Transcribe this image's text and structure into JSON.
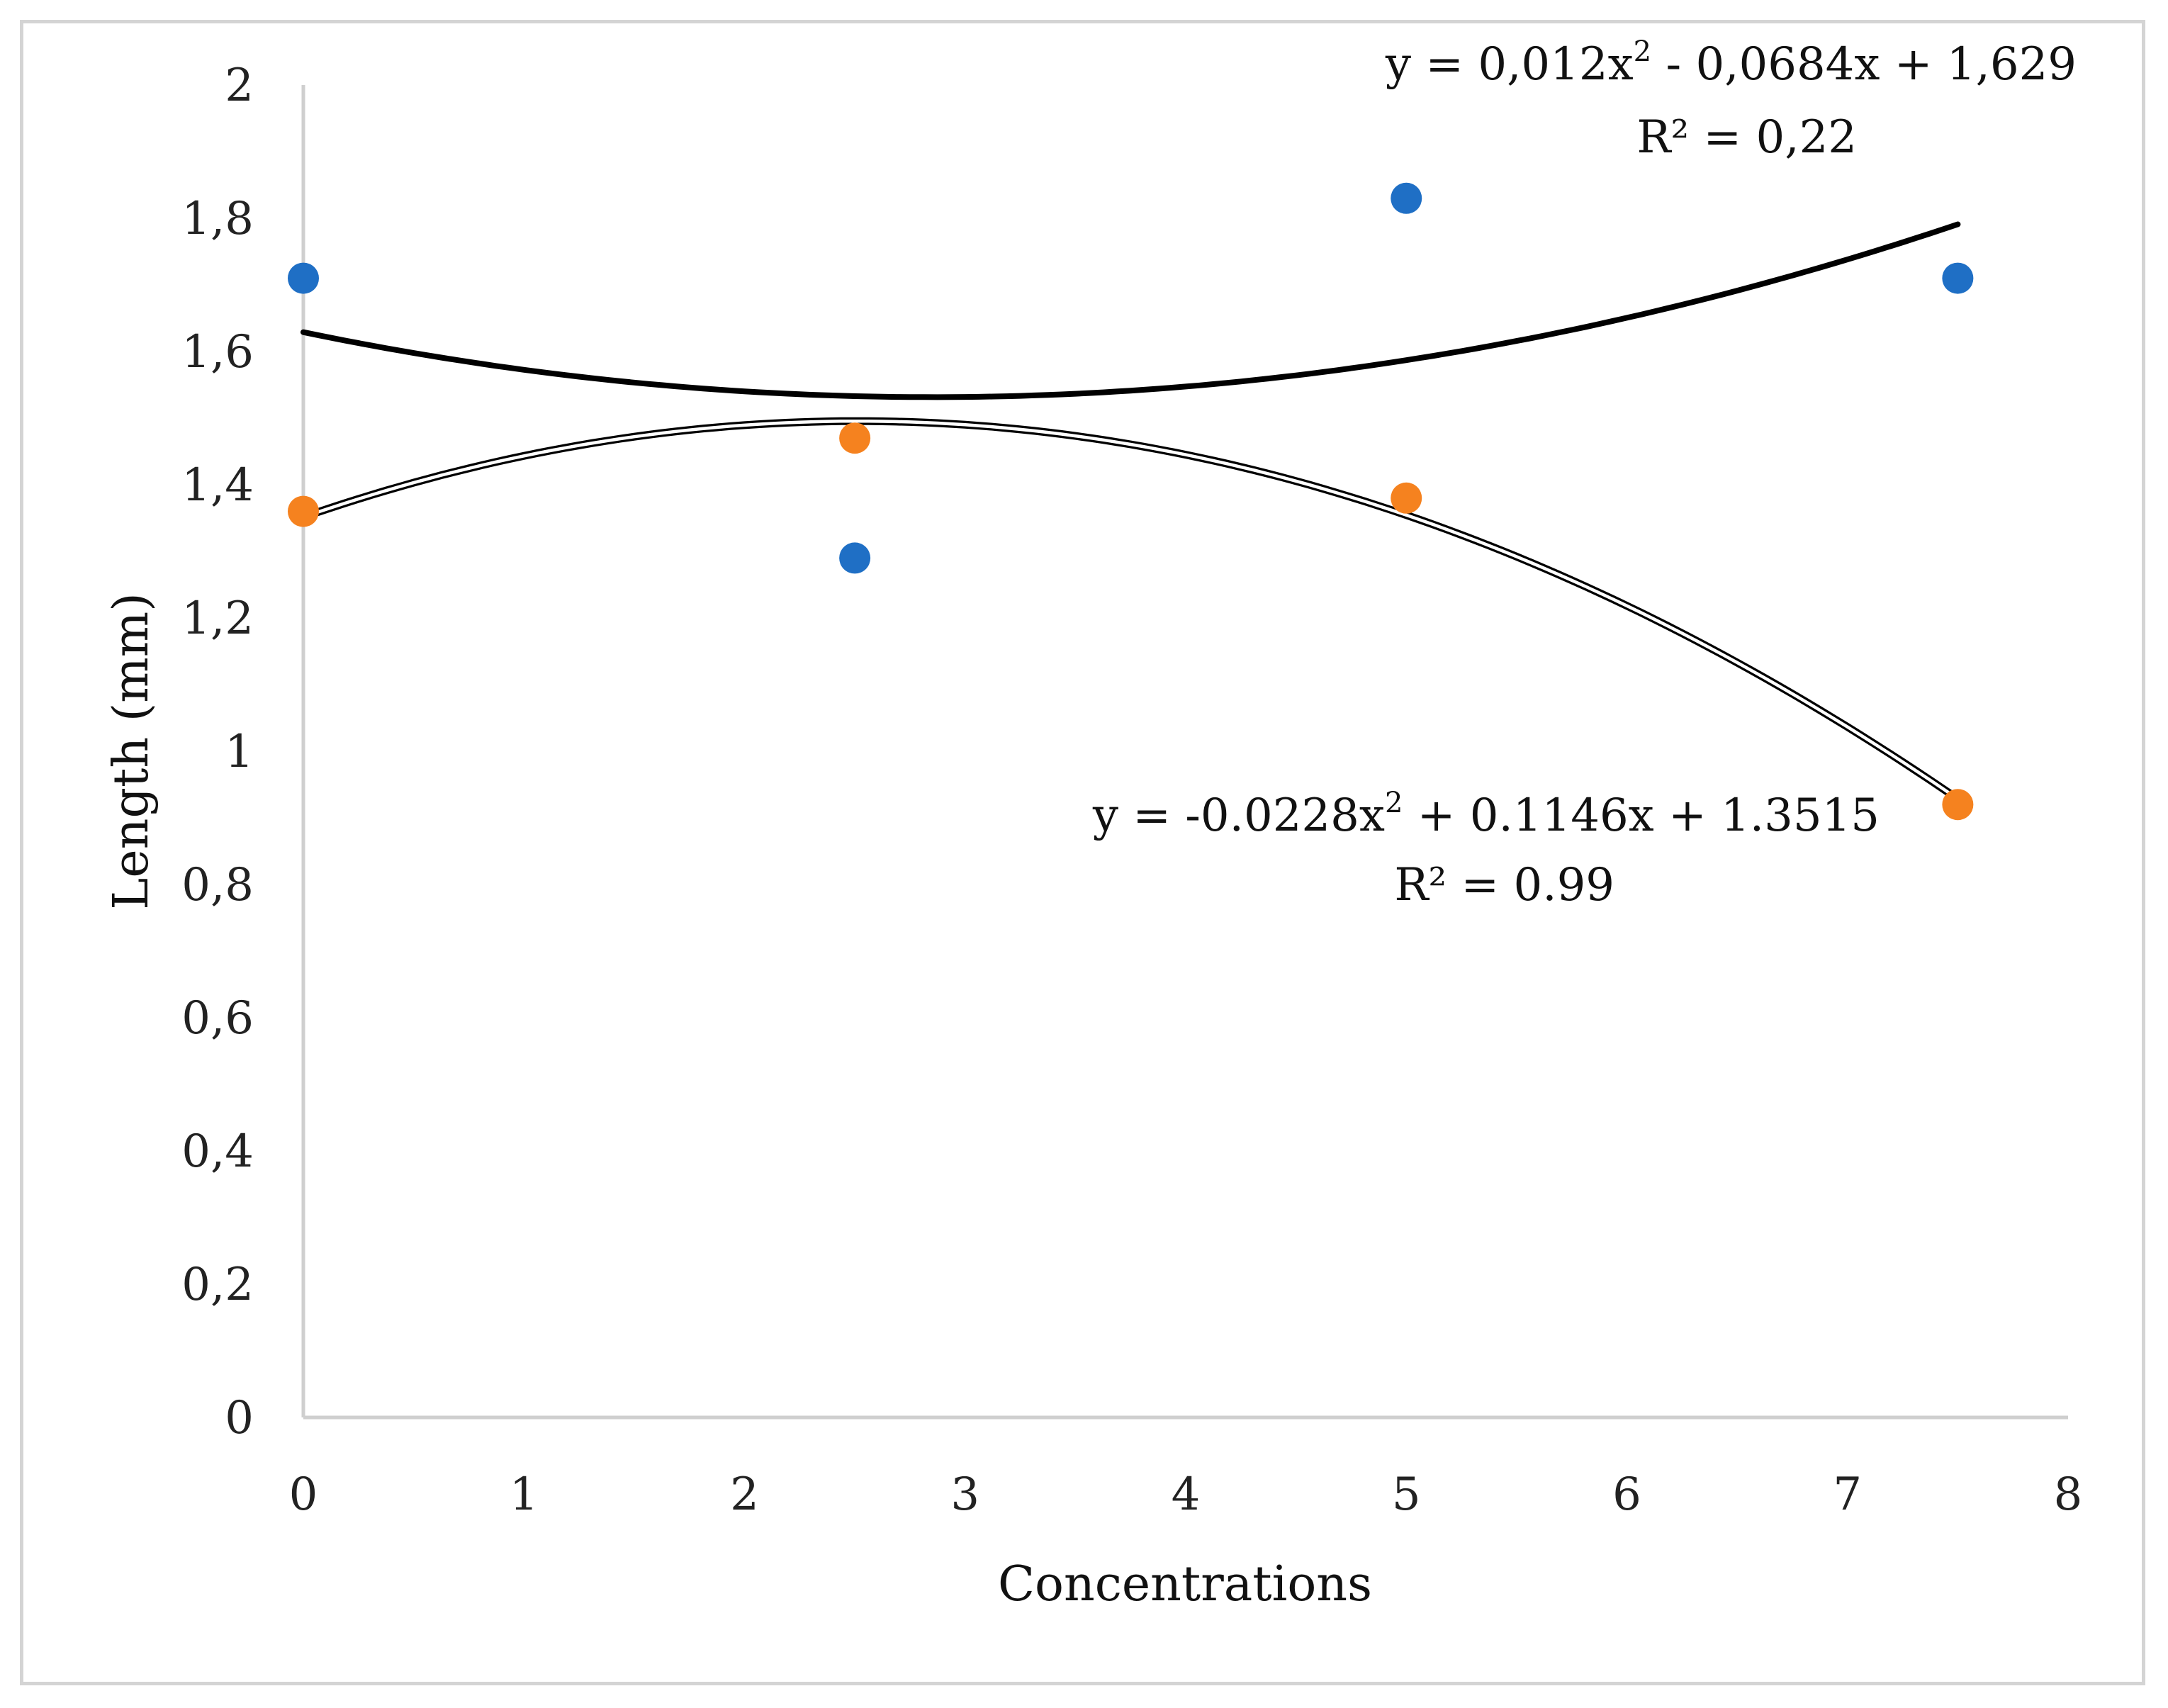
{
  "chart_data": {
    "type": "scatter",
    "title": "",
    "xlabel": "Concentrations",
    "ylabel": "Length (mm)",
    "xlim": [
      0,
      8
    ],
    "ylim": [
      0,
      2
    ],
    "x_ticks": [
      "0",
      "1",
      "2",
      "3",
      "4",
      "5",
      "6",
      "7",
      "8"
    ],
    "y_ticks": [
      "0",
      "0,2",
      "0,4",
      "0,6",
      "0,8",
      "1",
      "1,2",
      "1,4",
      "1,6",
      "1,8",
      "2"
    ],
    "grid": false,
    "legend": "none",
    "series": [
      {
        "name": "series-1",
        "color": "#1f6fc5",
        "x": [
          0,
          2.5,
          5,
          7.5
        ],
        "y": [
          1.71,
          1.29,
          1.83,
          1.71
        ],
        "trendline": {
          "type": "polynomial-2",
          "coefficients": [
            0.012,
            -0.0684,
            1.629
          ],
          "x_range": [
            0,
            7.5
          ],
          "style": "solid-bold",
          "color": "#000000",
          "equation_main": "y = 0,012x",
          "equation_sup": "2",
          "equation_rest": " - 0,0684x + 1,629",
          "r2_label": "R² = 0,22"
        }
      },
      {
        "name": "series-2",
        "color": "#f5821f",
        "x": [
          0,
          2.5,
          5,
          7.5
        ],
        "y": [
          1.36,
          1.47,
          1.38,
          0.92
        ],
        "trendline": {
          "type": "polynomial-2",
          "coefficients": [
            -0.0228,
            0.1146,
            1.3515
          ],
          "x_range": [
            0,
            7.5
          ],
          "style": "double-line",
          "color": "#000000",
          "equation_main": "y = -0.0228x",
          "equation_sup": "2",
          "equation_rest": " + 0.1146x + 1.3515",
          "r2_label": "R² = 0.99"
        }
      }
    ]
  }
}
